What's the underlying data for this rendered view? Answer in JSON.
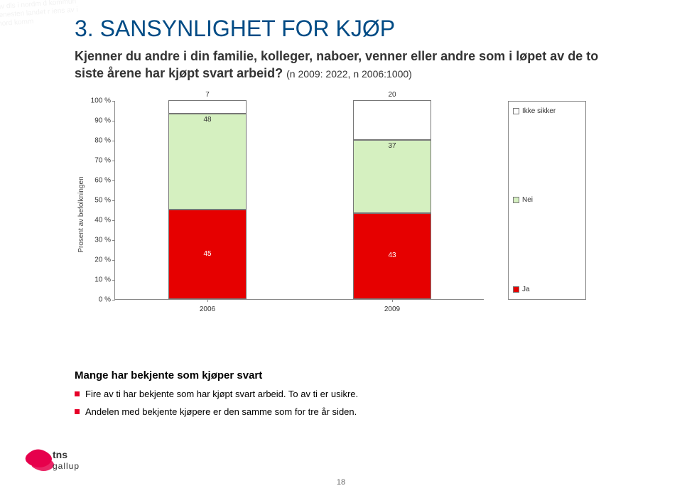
{
  "title": "3. SANSYNLIGHET FOR KJØP",
  "subtitle_main": "Kjenner du andre i din familie, kolleger, naboer, venner eller andre som i løpet av de to siste årene har kjøpt svart arbeid?",
  "subtitle_note": "(n 2009: 2022, n 2006:1000)",
  "chart": {
    "type": "bar",
    "y_axis_title": "Prosent av befolkningen",
    "ylim": [
      0,
      100
    ],
    "ytick_step": 10,
    "ytick_suffix": " %",
    "background_color": "#ffffff",
    "axis_color": "#888888",
    "label_fontsize": 10,
    "categories": [
      "2006",
      "2009"
    ],
    "segments": [
      {
        "key": "ja",
        "label": "Ja",
        "color": "#e60000"
      },
      {
        "key": "nei",
        "label": "Nei",
        "color": "#d5f0c0"
      },
      {
        "key": "ikke",
        "label": "Ikke sikker",
        "color": "#ffffff"
      }
    ],
    "series": {
      "2006": {
        "ja": 45,
        "nei": 48,
        "ikke": 7
      },
      "2009": {
        "ja": 43,
        "nei": 37,
        "ikke": 20
      }
    }
  },
  "notes_title": "Mange har bekjente som kjøper svart",
  "notes": [
    "Fire av ti har bekjente som har kjøpt svart arbeid. To av ti er usikre.",
    "Andelen med bekjente kjøpere er den samme som for tre år siden."
  ],
  "page_number": "18",
  "brand": {
    "name": "tns gallup",
    "color": "#e6004c"
  }
}
